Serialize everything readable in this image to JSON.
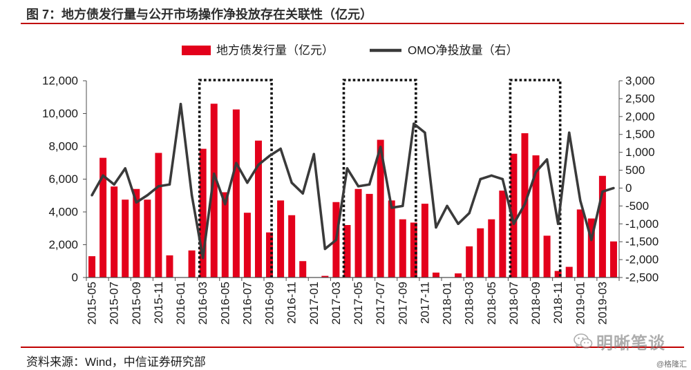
{
  "figure": {
    "source": "资料来源：Wind，中信证券研究部"
  },
  "watermark": {
    "icon": "wechat-icon",
    "text": "明晰笔谈",
    "credit": "@格隆汇"
  },
  "colors": {
    "bar": "#e3001b",
    "line": "#3a3a3a",
    "rule": "#c00000",
    "highlight_box": "#111111",
    "axis": "#4d4d4d"
  },
  "chart_data": {
    "type": "bar",
    "title": "图 7：地方债发行量与公开市场操作净投放存在关联性（亿元）",
    "legend": "top-center",
    "grid": false,
    "categories": [
      "2015-05",
      "2015-06",
      "2015-07",
      "2015-08",
      "2015-09",
      "2015-10",
      "2015-11",
      "2015-12",
      "2016-01",
      "2016-02",
      "2016-03",
      "2016-04",
      "2016-05",
      "2016-06",
      "2016-07",
      "2016-08",
      "2016-09",
      "2016-10",
      "2016-11",
      "2016-12",
      "2017-01",
      "2017-02",
      "2017-03",
      "2017-04",
      "2017-05",
      "2017-06",
      "2017-07",
      "2017-08",
      "2017-09",
      "2017-10",
      "2017-11",
      "2017-12",
      "2018-01",
      "2018-02",
      "2018-03",
      "2018-04",
      "2018-05",
      "2018-06",
      "2018-07",
      "2018-08",
      "2018-09",
      "2018-10",
      "2018-11",
      "2018-12",
      "2019-01",
      "2019-02",
      "2019-03",
      "2019-04"
    ],
    "x_tick_labels": [
      "2015-05",
      "2015-07",
      "2015-09",
      "2015-11",
      "2016-01",
      "2016-03",
      "2016-05",
      "2016-07",
      "2016-09",
      "2016-11",
      "2017-01",
      "2017-03",
      "2017-05",
      "2017-07",
      "2017-09",
      "2017-11",
      "2018-01",
      "2018-03",
      "2018-05",
      "2018-07",
      "2018-09",
      "2018-11",
      "2019-01",
      "2019-03"
    ],
    "series": [
      {
        "name": "地方债发行量（亿元）",
        "render": "bar",
        "axis": "left",
        "values": [
          1300,
          7300,
          5550,
          4750,
          5400,
          4750,
          7600,
          1350,
          0,
          1650,
          7850,
          10600,
          5200,
          10250,
          3950,
          8350,
          2750,
          4700,
          3800,
          1000,
          0,
          100,
          4600,
          3200,
          5400,
          5100,
          8400,
          4700,
          3550,
          3350,
          4500,
          300,
          0,
          250,
          1900,
          3000,
          3550,
          5300,
          7550,
          8800,
          7450,
          2550,
          400,
          650,
          4150,
          3600,
          6200,
          2200
        ]
      },
      {
        "name": "OMO净投放量（右）",
        "render": "line",
        "axis": "right",
        "values": [
          -200,
          350,
          100,
          550,
          -400,
          -200,
          50,
          100,
          2350,
          -200,
          -1950,
          400,
          -450,
          700,
          150,
          650,
          900,
          1100,
          150,
          -150,
          950,
          -1700,
          -1450,
          550,
          50,
          100,
          1150,
          -550,
          -500,
          1800,
          1550,
          -1100,
          -500,
          -1000,
          -700,
          250,
          350,
          250,
          -1000,
          -450,
          450,
          800,
          -1000,
          1550,
          -350,
          -1450,
          -100,
          0
        ]
      }
    ],
    "y_left": {
      "ylim": [
        0,
        12000
      ],
      "ticks": [
        0,
        2000,
        4000,
        6000,
        8000,
        10000,
        12000
      ],
      "tick_labels": [
        "0",
        "2,000",
        "4,000",
        "6,000",
        "8,000",
        "10,000",
        "12,000"
      ]
    },
    "y_right": {
      "ylim": [
        -2500,
        3000
      ],
      "ticks": [
        -2500,
        -2000,
        -1500,
        -1000,
        -500,
        0,
        500,
        1000,
        1500,
        2000,
        2500,
        3000
      ],
      "tick_labels": [
        "-2,500",
        "-2,000",
        "-1,500",
        "-1,000",
        "-500",
        "0",
        "500",
        "1,000",
        "1,500",
        "2,000",
        "2,500",
        "3,000"
      ]
    },
    "highlight_ranges": [
      {
        "start": "2016-03",
        "end": "2016-09"
      },
      {
        "start": "2017-04",
        "end": "2017-10"
      },
      {
        "start": "2018-07",
        "end": "2018-11"
      }
    ]
  }
}
